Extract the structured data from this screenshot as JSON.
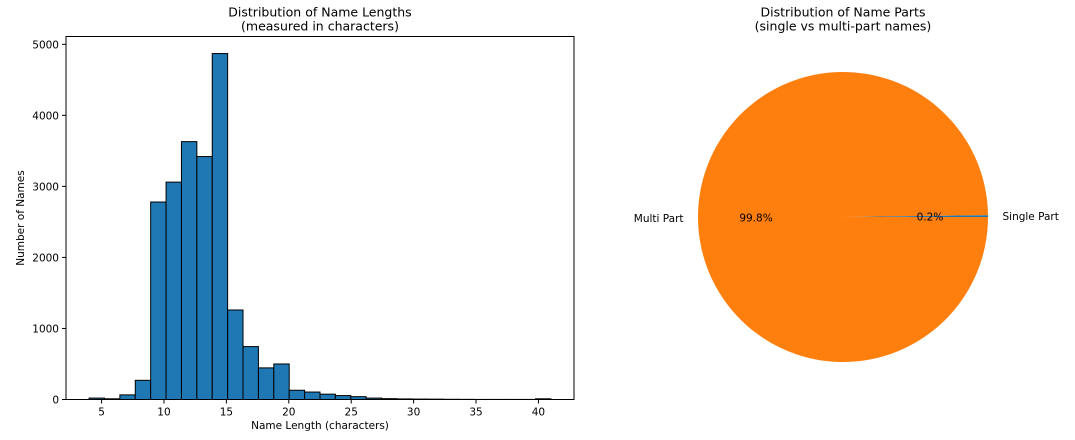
{
  "chart_data": [
    {
      "type": "bar",
      "title": "Distribution of Name Lengths",
      "subtitle": "(measured in characters)",
      "xlabel": "Name Length (characters)",
      "ylabel": "Number of Names",
      "xlim": [
        2.15,
        42.85
      ],
      "ylim": [
        0,
        5110
      ],
      "xticks": [
        5,
        10,
        15,
        20,
        25,
        30,
        35,
        40
      ],
      "yticks": [
        0,
        1000,
        2000,
        3000,
        4000,
        5000
      ],
      "bin_edges": [
        4,
        5.233,
        6.467,
        7.7,
        8.933,
        10.167,
        11.4,
        12.633,
        13.867,
        15.1,
        16.333,
        17.567,
        18.8,
        20.033,
        21.267,
        22.5,
        23.733,
        24.967,
        26.2,
        27.433,
        28.667,
        29.9,
        31.133,
        32.367,
        33.6,
        34.833,
        36.067,
        37.3,
        38.533,
        39.767,
        41
      ],
      "values": [
        20,
        10,
        65,
        270,
        2780,
        3060,
        3630,
        3420,
        4870,
        1260,
        745,
        445,
        500,
        130,
        105,
        75,
        55,
        40,
        20,
        12,
        8,
        6,
        5,
        3,
        2,
        1,
        1,
        1,
        1,
        10
      ],
      "color": "#1f77b4",
      "edge_color": "#000000"
    },
    {
      "type": "pie",
      "title": "Distribution of Name Parts",
      "subtitle": "(single vs multi-part names)",
      "labels": [
        "Single Part",
        "Multi Part"
      ],
      "values": [
        0.2,
        99.8
      ],
      "autopct": [
        "0.2%",
        "99.8%"
      ],
      "colors": [
        "#1f77b4",
        "#ff7f0e"
      ]
    }
  ]
}
